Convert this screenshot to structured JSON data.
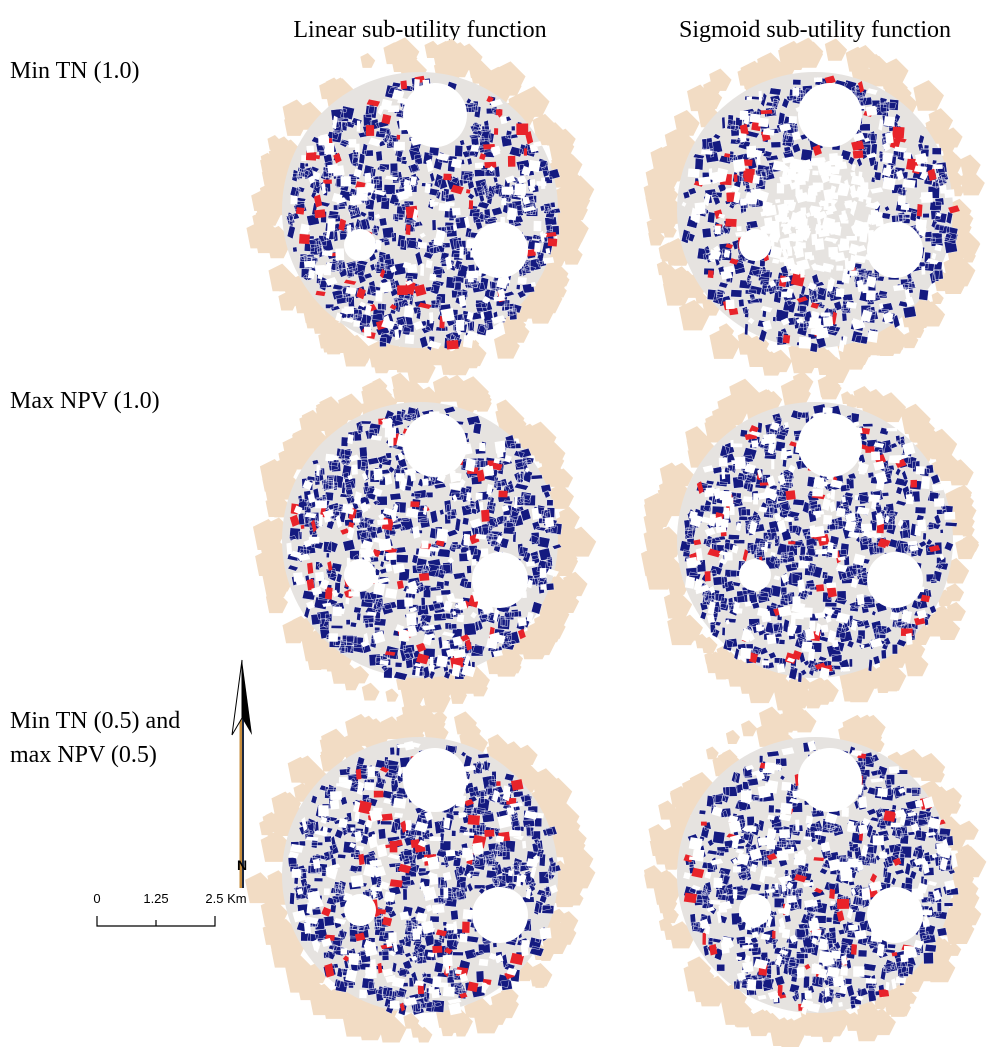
{
  "columns": [
    "Linear sub-utility function",
    "Sigmoid sub-utility function"
  ],
  "rows": [
    [
      "Min TN (1.0)"
    ],
    [
      "Max NPV (1.0)"
    ],
    [
      "Min TN (0.5) and",
      "max NPV (0.5)"
    ]
  ],
  "north_label": "N",
  "scale_labels": [
    "0",
    "1.25",
    "2.5 Km"
  ]
}
